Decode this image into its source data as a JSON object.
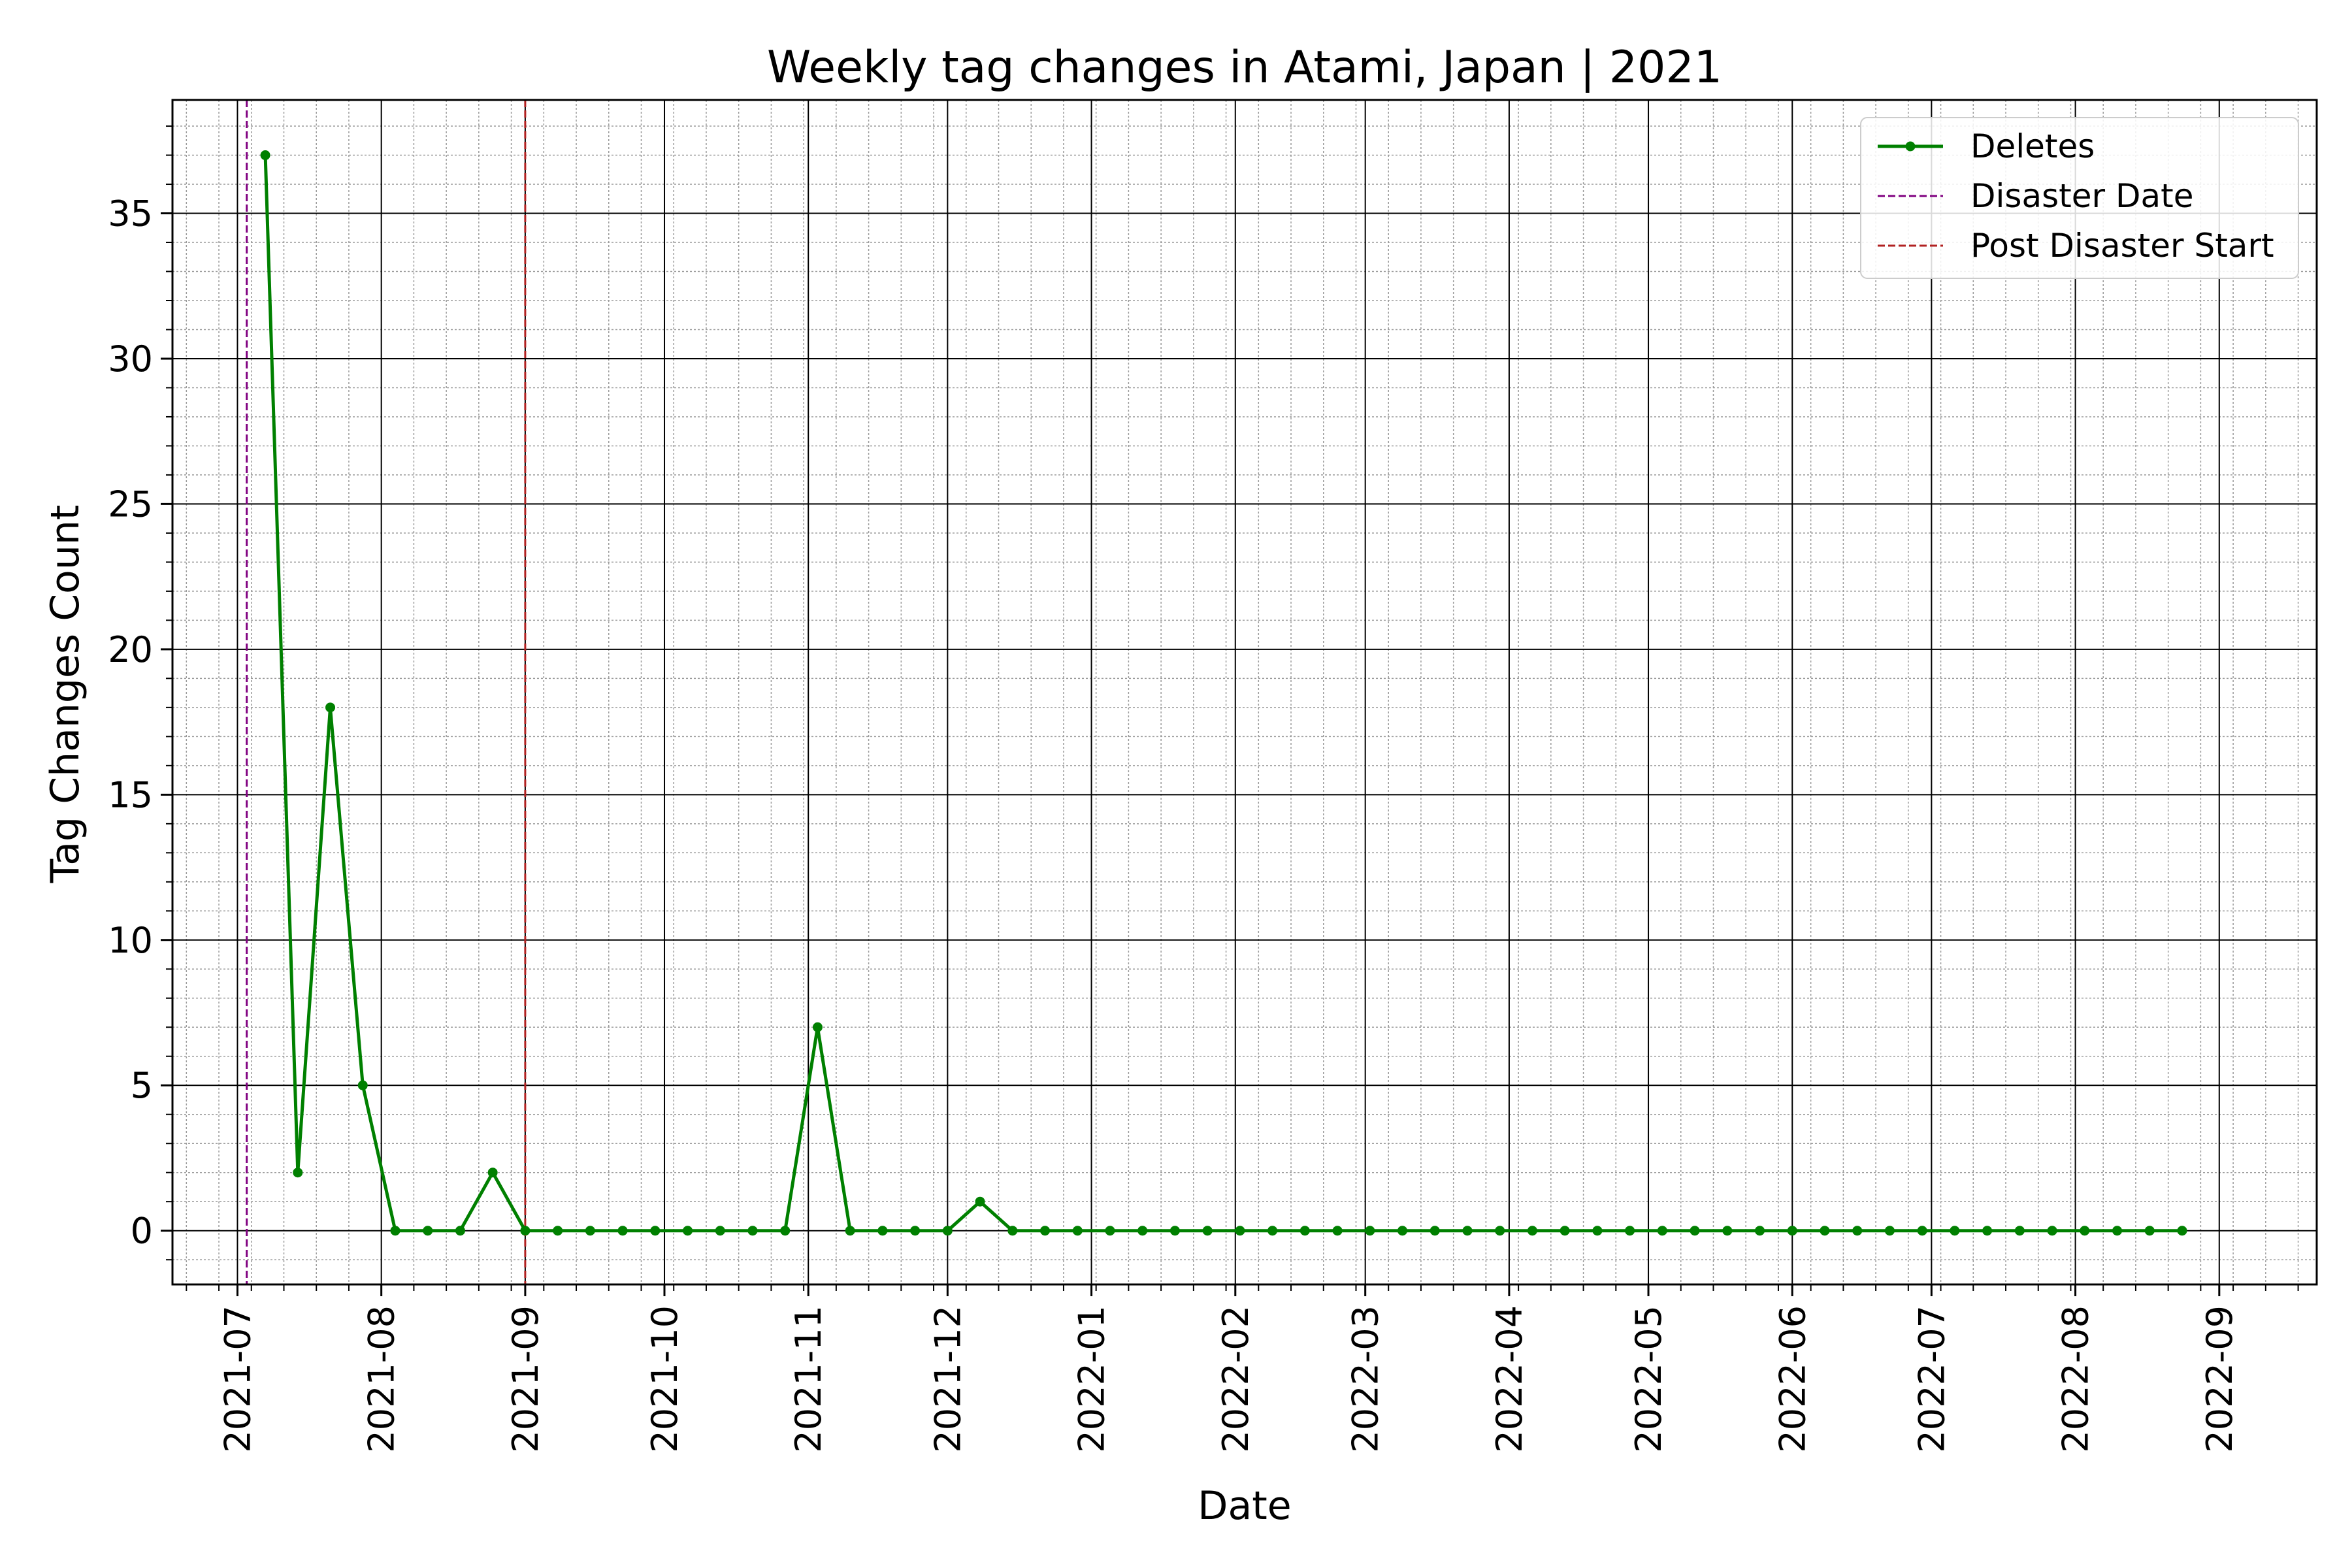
{
  "chart_data": {
    "type": "line",
    "title": "Weekly tag changes in Atami, Japan | 2021",
    "xlabel": "Date",
    "ylabel": "Tag Changes Count",
    "x_tick_labels": [
      "2021-07",
      "2021-08",
      "2021-09",
      "2021-10",
      "2021-11",
      "2021-12",
      "2022-01",
      "2022-02",
      "2022-03",
      "2022-04",
      "2022-05",
      "2022-06",
      "2022-07",
      "2022-08",
      "2022-09"
    ],
    "y_tick_labels": [
      "0",
      "5",
      "10",
      "15",
      "20",
      "25",
      "30",
      "35"
    ],
    "ylim": [
      -1.85,
      38.9
    ],
    "xlim": [
      "2021-06-17",
      "2022-09-22"
    ],
    "grid": true,
    "legend_position": "top-right",
    "series": [
      {
        "name": "Deletes",
        "color": "#008000",
        "marker": "dot",
        "x": [
          "2021-07-07",
          "2021-07-14",
          "2021-07-21",
          "2021-07-28",
          "2021-08-04",
          "2021-08-11",
          "2021-08-18",
          "2021-08-25",
          "2021-09-01",
          "2021-09-08",
          "2021-09-15",
          "2021-09-22",
          "2021-09-29",
          "2021-10-06",
          "2021-10-13",
          "2021-10-20",
          "2021-10-27",
          "2021-11-03",
          "2021-11-10",
          "2021-11-17",
          "2021-11-24",
          "2021-12-01",
          "2021-12-08",
          "2021-12-15",
          "2021-12-22",
          "2021-12-29",
          "2022-01-05",
          "2022-01-12",
          "2022-01-19",
          "2022-01-26",
          "2022-02-02",
          "2022-02-09",
          "2022-02-16",
          "2022-02-23",
          "2022-03-02",
          "2022-03-09",
          "2022-03-16",
          "2022-03-23",
          "2022-03-30",
          "2022-04-06",
          "2022-04-13",
          "2022-04-20",
          "2022-04-27",
          "2022-05-04",
          "2022-05-11",
          "2022-05-18",
          "2022-05-25",
          "2022-06-01",
          "2022-06-08",
          "2022-06-15",
          "2022-06-22",
          "2022-06-29",
          "2022-07-06",
          "2022-07-13",
          "2022-07-20",
          "2022-07-27",
          "2022-08-03",
          "2022-08-10",
          "2022-08-17",
          "2022-08-24"
        ],
        "values": [
          37,
          2,
          18,
          5,
          0,
          0,
          0,
          2,
          0,
          0,
          0,
          0,
          0,
          0,
          0,
          0,
          0,
          7,
          0,
          0,
          0,
          0,
          1,
          0,
          0,
          0,
          0,
          0,
          0,
          0,
          0,
          0,
          0,
          0,
          0,
          0,
          0,
          0,
          0,
          0,
          0,
          0,
          0,
          0,
          0,
          0,
          0,
          0,
          0,
          0,
          0,
          0,
          0,
          0,
          0,
          0,
          0,
          0,
          0,
          0
        ]
      }
    ],
    "vlines": [
      {
        "name": "Disaster Date",
        "date": "2021-07-03",
        "color": "#800080",
        "style": "dashed"
      },
      {
        "name": "Post Disaster Start",
        "date": "2021-09-01",
        "color": "#b22222",
        "style": "dashed"
      }
    ]
  }
}
